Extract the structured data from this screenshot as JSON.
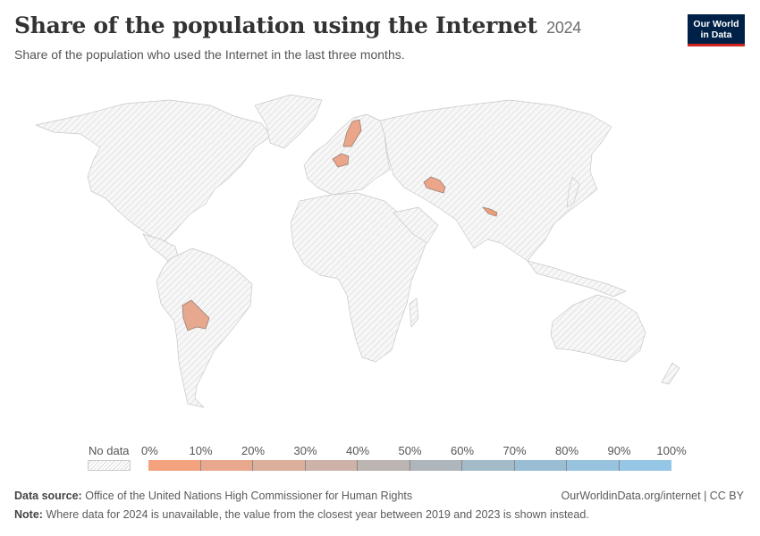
{
  "header": {
    "title": "Share of the population using the Internet",
    "year": "2024",
    "subtitle": "Share of the population who used the Internet in the last three months.",
    "logo_line1": "Our World",
    "logo_line2": "in Data"
  },
  "legend": {
    "no_data_label": "No data",
    "ticks": [
      "0%",
      "10%",
      "20%",
      "30%",
      "40%",
      "50%",
      "60%",
      "70%",
      "80%",
      "90%",
      "100%"
    ],
    "bin_colors": [
      "#f2a27c",
      "#e8a88d",
      "#dcaf9c",
      "#ccb2a8",
      "#bbb4b0",
      "#aeb6bc",
      "#a3bac8",
      "#99bed3",
      "#97c3de",
      "#95c6e6"
    ]
  },
  "countries_with_data": [
    {
      "name": "Sweden",
      "color": "#eba58a"
    },
    {
      "name": "Czechia",
      "color": "#eba58a"
    },
    {
      "name": "Turkmenistan",
      "color": "#eba58a"
    },
    {
      "name": "Nepal",
      "color": "#ef9e7a"
    },
    {
      "name": "Bolivia",
      "color": "#e6a88e"
    }
  ],
  "footer": {
    "source_label": "Data source:",
    "source_text": "Office of the United Nations High Commissioner for Human Rights",
    "site": "OurWorldinData.org/internet | CC BY",
    "note_label": "Note:",
    "note_text": "Where data for 2024 is unavailable, the value from the closest year between 2019 and 2023 is shown instead."
  },
  "colors": {
    "no_data_fill": "#f2f2f2",
    "border": "#c8c8c8"
  }
}
